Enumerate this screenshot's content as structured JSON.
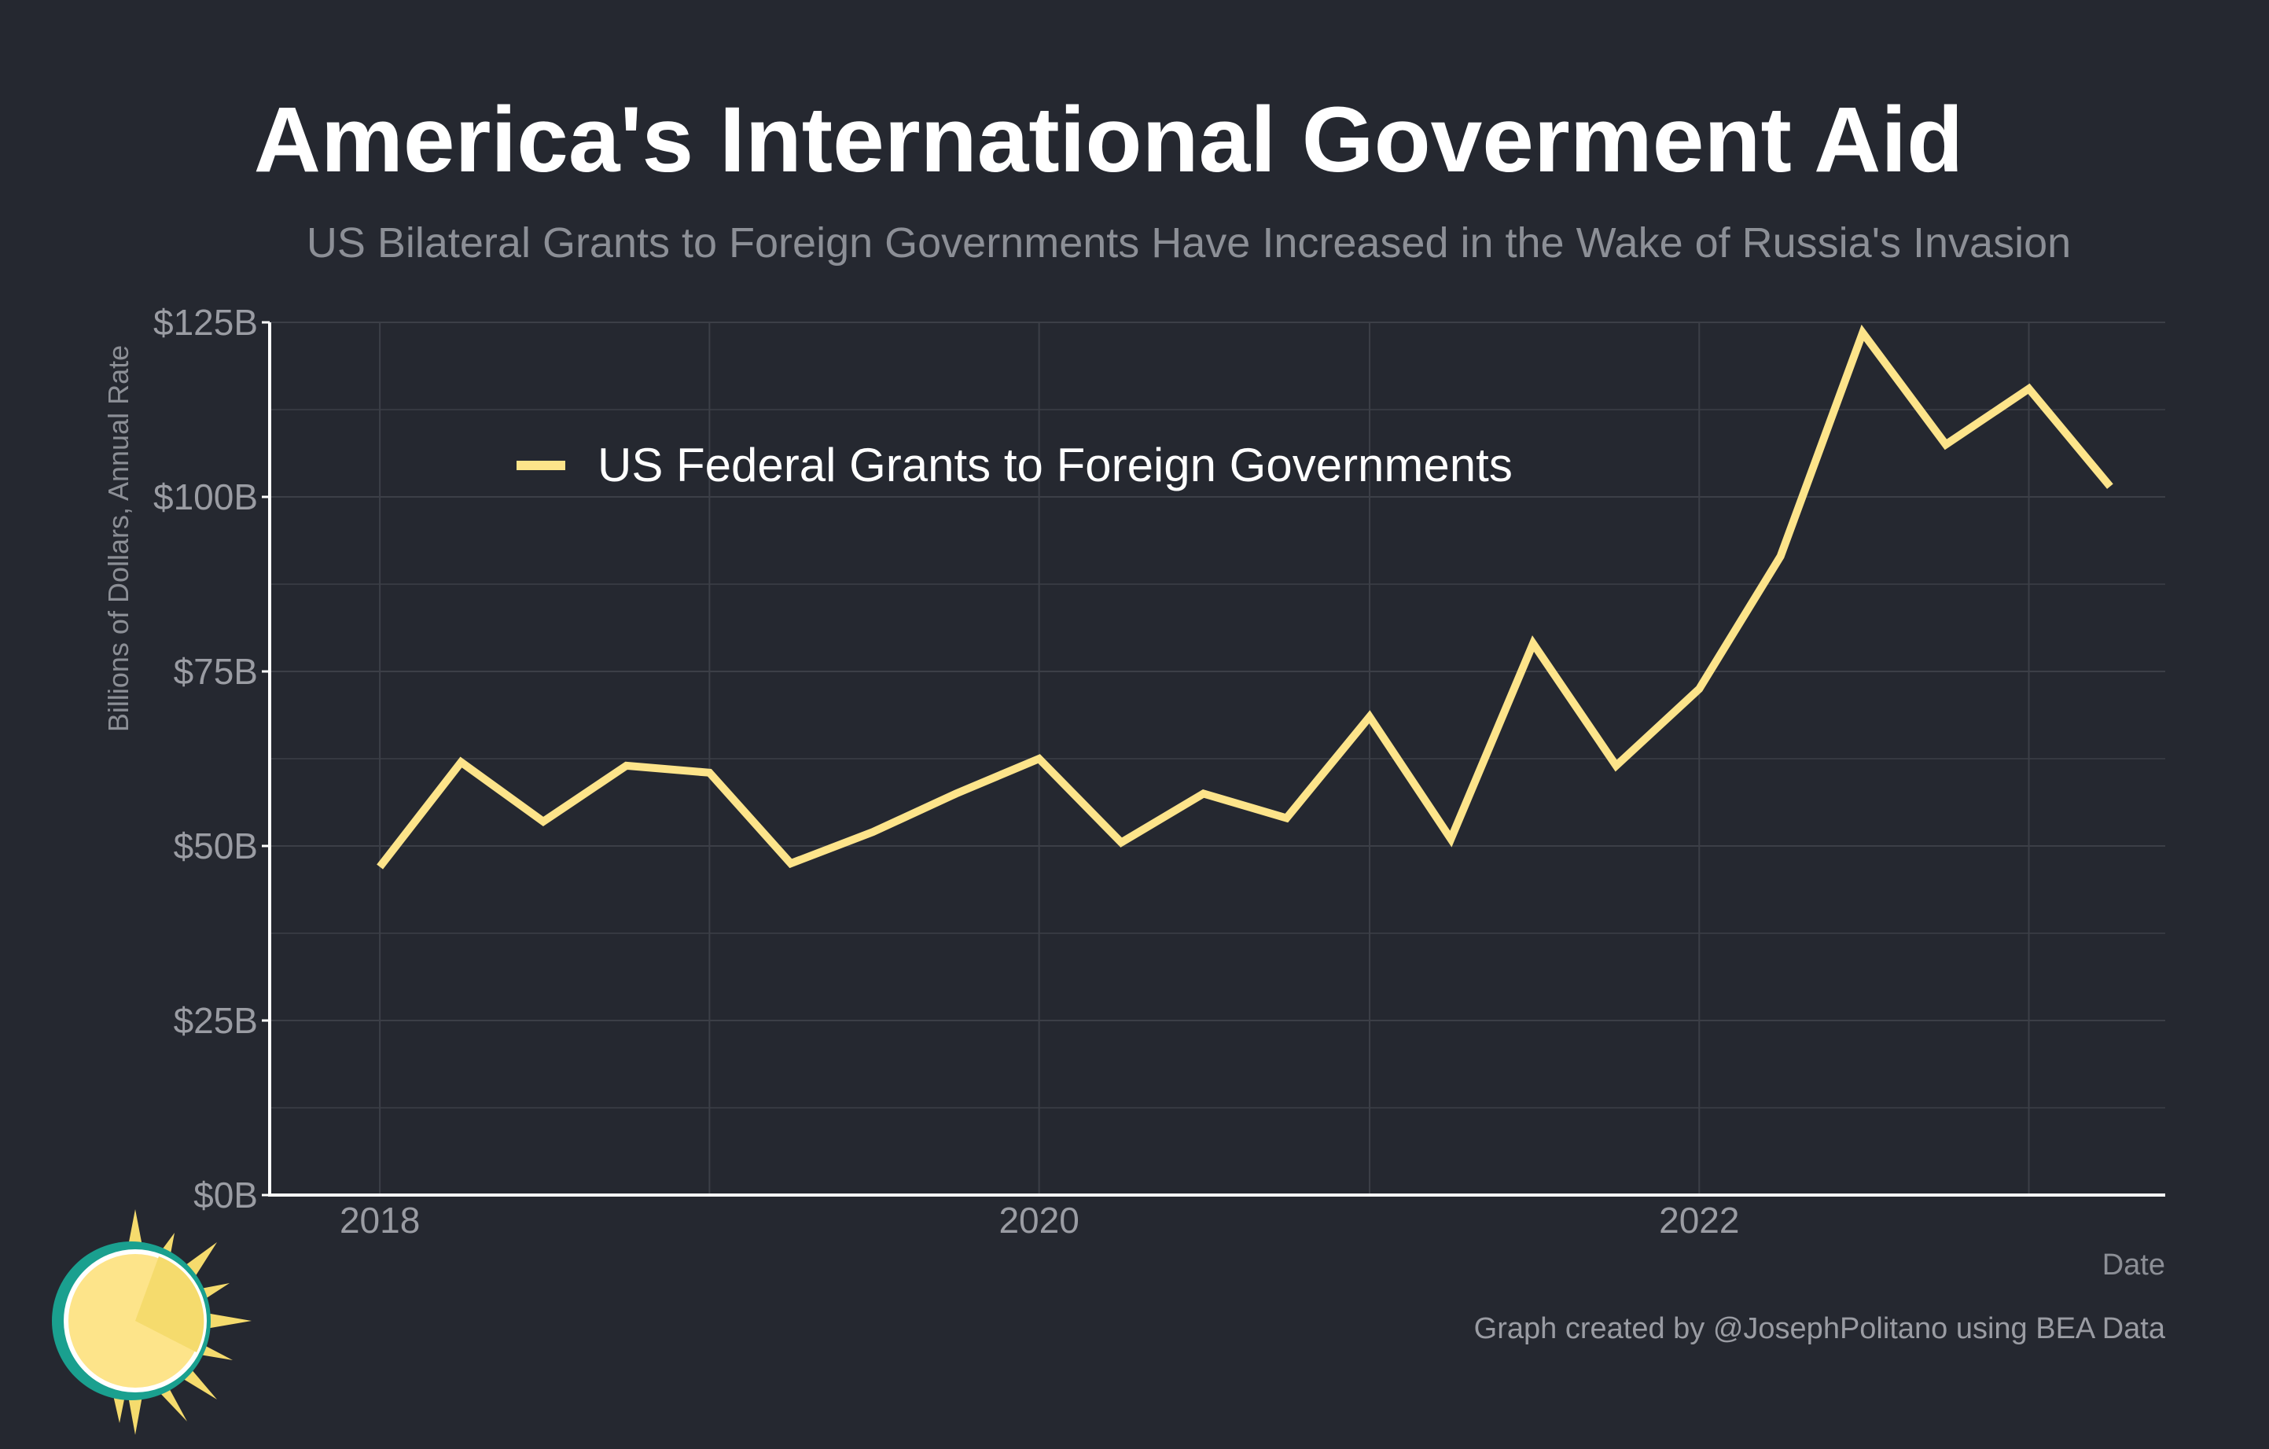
{
  "chart_data": {
    "type": "line",
    "title": "America's International Goverment Aid",
    "subtitle": "US Bilateral Grants to Foreign Governments Have Increased in the Wake of Russia's Invasion",
    "xlabel": "Date",
    "ylabel": "Billions of Dollars, Annual Rate",
    "ylim": [
      0,
      125
    ],
    "xlim": [
      "2017-09-01",
      "2023-06-01"
    ],
    "y_ticks": [
      0,
      25,
      50,
      75,
      100,
      125
    ],
    "y_tick_labels": [
      "$0B",
      "$25B",
      "$50B",
      "$75B",
      "$100B",
      "$125B"
    ],
    "x_ticks": [
      "2018-01-01",
      "2020-01-01",
      "2022-01-01"
    ],
    "x_tick_labels": [
      "2018",
      "2020",
      "2022"
    ],
    "x_minor_ticks": [
      "2019-01-01",
      "2021-01-01",
      "2023-01-01"
    ],
    "grid": true,
    "legend_placement": "top-left",
    "series": [
      {
        "name": "US Federal Grants to Foreign Governments",
        "color": "#fde48a",
        "x": [
          "2018-01-01",
          "2018-04-01",
          "2018-07-01",
          "2018-10-01",
          "2019-01-01",
          "2019-04-01",
          "2019-07-01",
          "2019-10-01",
          "2020-01-01",
          "2020-04-01",
          "2020-07-01",
          "2020-10-01",
          "2021-01-01",
          "2021-04-01",
          "2021-07-01",
          "2021-10-01",
          "2022-01-01",
          "2022-04-01",
          "2022-07-01",
          "2022-10-01",
          "2023-01-01",
          "2023-04-01"
        ],
        "values": [
          47,
          62,
          53.5,
          61.5,
          60.5,
          47.5,
          52,
          57.5,
          62.5,
          50.5,
          57.5,
          54,
          68.5,
          51,
          79,
          61.5,
          72.5,
          91.5,
          123.5,
          107.5,
          115.5,
          101.5
        ]
      }
    ]
  },
  "footer": {
    "credit": "Graph created by @JosephPolitano using BEA Data"
  },
  "logo": {
    "icon": "sun-logo-icon",
    "colors": [
      "#f5db6d",
      "#fde48a",
      "#1aa08f"
    ]
  },
  "colors": {
    "background": "#252830",
    "grid": "#3c3f47",
    "axis": "#ffffff",
    "line": "#fde48a"
  }
}
